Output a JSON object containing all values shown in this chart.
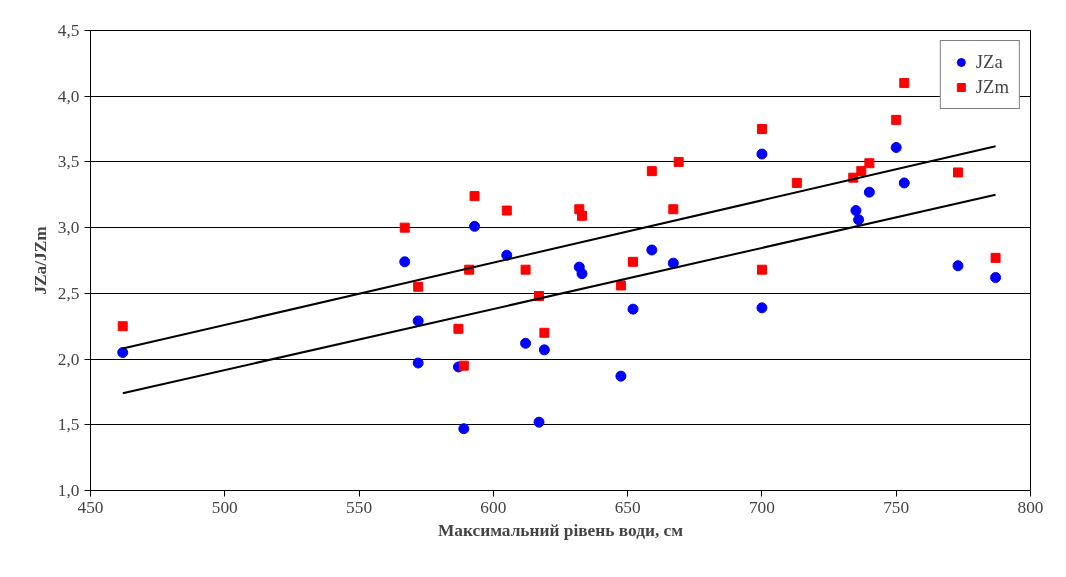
{
  "chart_data": {
    "type": "scatter",
    "xlabel": "Максимальний рівень води, см",
    "ylabel": "JZa/JZm",
    "xlim": [
      450,
      800
    ],
    "xticks": [
      450,
      500,
      550,
      600,
      650,
      700,
      750,
      800
    ],
    "ylim": [
      1.0,
      4.5
    ],
    "yticks": [
      {
        "value": 1.0,
        "label": "1,0"
      },
      {
        "value": 1.5,
        "label": "1,5"
      },
      {
        "value": 2.0,
        "label": "2,0"
      },
      {
        "value": 2.5,
        "label": "2,5"
      },
      {
        "value": 3.0,
        "label": "3,0"
      },
      {
        "value": 3.5,
        "label": "3,5"
      },
      {
        "value": 4.0,
        "label": "4,0"
      },
      {
        "value": 4.5,
        "label": "4,5"
      }
    ],
    "grid": "y",
    "legend": "top right",
    "series": [
      {
        "name": "JZa",
        "color": "#0000ff",
        "marker": "circle",
        "x": [
          462,
          567,
          572,
          572,
          587,
          589,
          593,
          605,
          612,
          617,
          619,
          632,
          633,
          647.5,
          652,
          659,
          667,
          700,
          700,
          735,
          736,
          740,
          750,
          753,
          773,
          787
        ],
        "values": [
          2.05,
          2.74,
          2.29,
          1.97,
          1.94,
          1.47,
          3.01,
          2.79,
          2.12,
          1.52,
          2.07,
          2.7,
          2.65,
          1.87,
          2.38,
          2.83,
          2.73,
          3.56,
          2.39,
          3.13,
          3.06,
          3.27,
          3.61,
          3.34,
          2.71,
          2.62
        ]
      },
      {
        "name": "JZm",
        "color": "#ff0000",
        "marker": "square",
        "x": [
          462,
          567,
          572,
          587,
          589,
          591,
          593,
          605,
          612,
          617,
          619,
          632,
          633,
          647.5,
          652,
          659,
          667,
          669,
          700,
          700,
          713,
          734,
          737,
          740,
          750,
          753,
          773,
          787
        ],
        "values": [
          2.25,
          3.0,
          2.55,
          2.23,
          1.95,
          2.68,
          3.24,
          3.13,
          2.68,
          2.48,
          2.2,
          3.14,
          3.09,
          2.56,
          2.74,
          3.43,
          3.14,
          3.5,
          3.75,
          2.68,
          3.34,
          3.38,
          3.43,
          3.49,
          3.82,
          4.1,
          3.42,
          2.77
        ]
      },
      {
        "type": "line",
        "color": "#000000",
        "x": [
          462,
          787
        ],
        "values": [
          2.08,
          3.62
        ]
      },
      {
        "type": "line",
        "color": "#000000",
        "x": [
          462,
          787
        ],
        "values": [
          1.74,
          3.25
        ]
      }
    ]
  }
}
